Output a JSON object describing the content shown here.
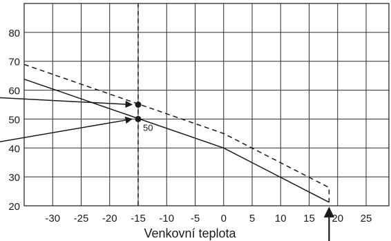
{
  "chart_data": {
    "type": "line",
    "xlabel": "Venkovní teplota",
    "ylabel": "",
    "title": "",
    "xlim": [
      -35,
      29
    ],
    "ylim": [
      20,
      90
    ],
    "x_ticks": [
      -30,
      -25,
      -20,
      -15,
      -10,
      -5,
      0,
      5,
      10,
      15,
      20,
      25
    ],
    "x_tick_labels": [
      "-30",
      "-25",
      "-20",
      "-15",
      "-10",
      "-5",
      "0",
      "5",
      "10",
      "15",
      "20",
      "25"
    ],
    "y_ticks": [
      20,
      30,
      40,
      50,
      60,
      70,
      80
    ],
    "y_tick_labels": [
      "20",
      "30",
      "40",
      "50",
      "60",
      "70",
      "80"
    ],
    "grid": true,
    "series": [
      {
        "style": "solid",
        "x": [
          -35,
          0,
          18.5
        ],
        "y": [
          63.8,
          40,
          21.2
        ]
      },
      {
        "style": "dashed",
        "x": [
          -35,
          0,
          18.5,
          18.5
        ],
        "y": [
          68.9,
          45,
          26.3,
          21.2
        ]
      }
    ],
    "reference_lines": [
      {
        "orientation": "vertical",
        "x": -15,
        "style": "dashed"
      }
    ],
    "points": [
      {
        "x": -15,
        "y": 55,
        "label": ""
      },
      {
        "x": -15,
        "y": 50,
        "label": "50"
      }
    ],
    "annotation_arrows": [
      {
        "to": {
          "x": -15,
          "y": 55
        }
      },
      {
        "to": {
          "x": -15,
          "y": 50
        }
      }
    ],
    "marker_arrow": {
      "x": 18.5,
      "direction": "up"
    }
  }
}
